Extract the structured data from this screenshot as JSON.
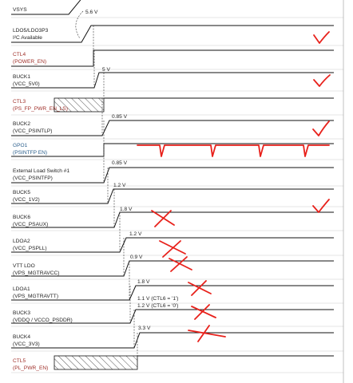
{
  "signals": [
    {
      "name": "VSYS",
      "voltage": "5.6 V"
    },
    {
      "name": "LDO5/LDO3P3",
      "desc": "I²C Available"
    },
    {
      "name": "CTL4",
      "desc": "(POWER_EN)"
    },
    {
      "name": "BUCK1",
      "desc": "(VCC_5V0)",
      "voltage": "5 V"
    },
    {
      "name": "CTL3",
      "desc": "(PS_FP_PWR_EN_LS)"
    },
    {
      "name": "BUCK2",
      "desc": "(VCC_PSINTLP)",
      "voltage": "0.85 V"
    },
    {
      "name": "GPO1",
      "desc": "(PSINTFP EN)"
    },
    {
      "name": "External Load Switch #1",
      "desc": "(VCC_PSINTFP)",
      "voltage": "0.85 V"
    },
    {
      "name": "BUCK5",
      "desc": "(VCC_1V2)",
      "voltage": "1.2 V"
    },
    {
      "name": "BUCK6",
      "desc": "(VCC_PSAUX)",
      "voltage": "1.8 V"
    },
    {
      "name": "LDOA2",
      "desc": "(VCC_PSPLL)",
      "voltage": "1.2 V"
    },
    {
      "name": "VTT LDO",
      "desc": "(VPS_MGTRAVCC)",
      "voltage": "0.9 V"
    },
    {
      "name": "LDOA1",
      "desc": "(VPS_MGTRAVTT)",
      "voltage": "1.8 V"
    },
    {
      "name": "BUCK3",
      "desc": "(VDDQ / VCCO_PSDDR)",
      "voltage": "1.1 V (CTL6 = '1')",
      "voltage2": "1.2 V (CTL6 = '0')"
    },
    {
      "name": "BUCK4",
      "desc": "(VCC_3V3)",
      "voltage": "3.3 V"
    },
    {
      "name": "CTL5",
      "desc": "(PL_PWR_EN)"
    }
  ]
}
